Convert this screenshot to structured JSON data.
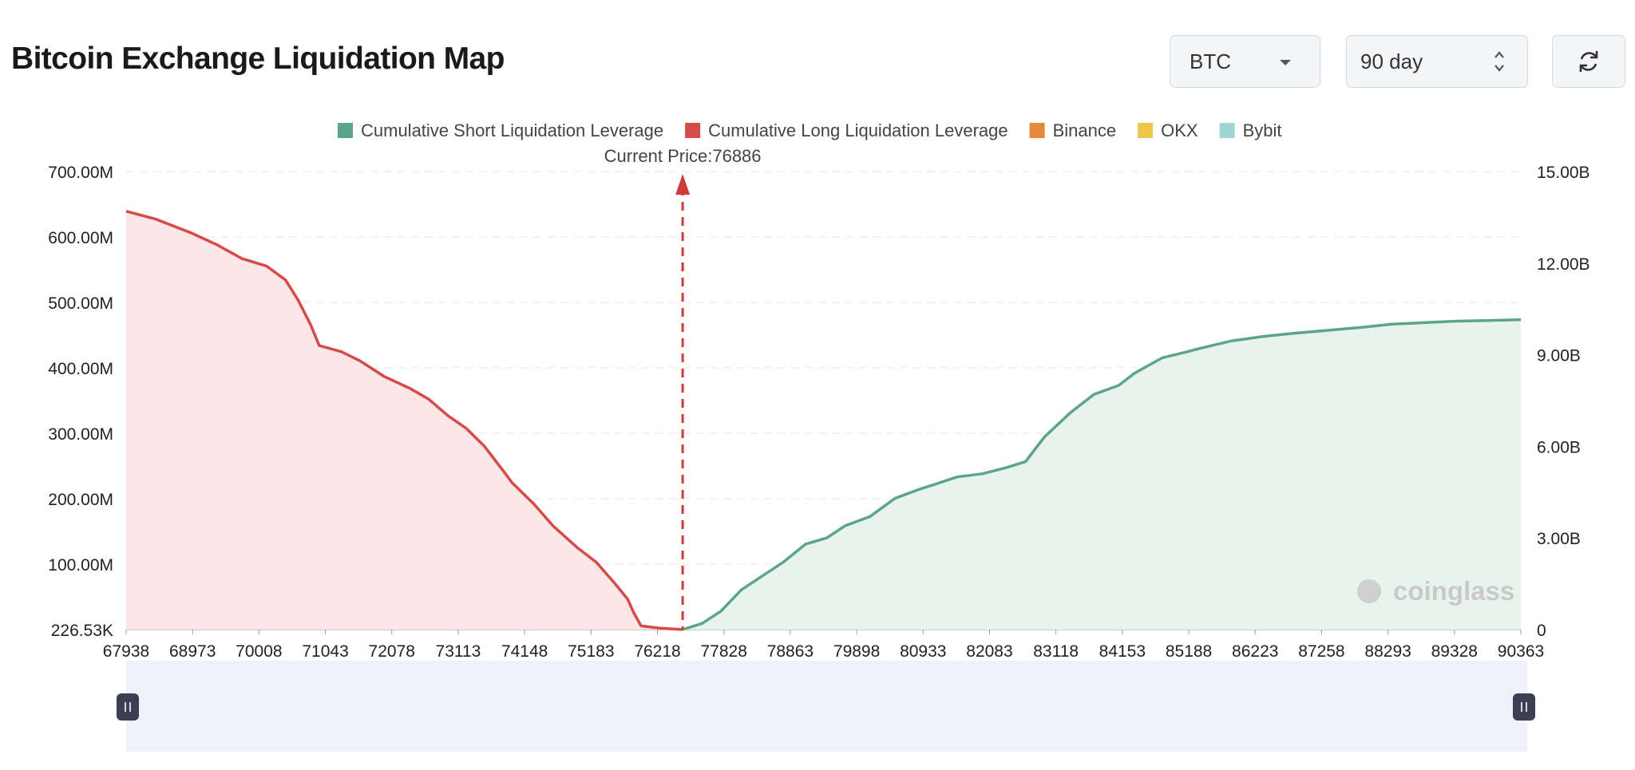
{
  "header": {
    "title": "Bitcoin Exchange Liquidation Map",
    "symbol_select": {
      "value": "BTC"
    },
    "range_select": {
      "value": "90 day"
    },
    "refresh_icon": "refresh-icon"
  },
  "colors": {
    "short": "#5aa58b",
    "long": "#d64a4a",
    "binance": "#e58a3a",
    "okx": "#eec64b",
    "bybit": "#a1d4d9",
    "shortFill": "#e9f3ee",
    "longFill": "#fbe7e8",
    "slider": "#eef1fc"
  },
  "watermark": "coinglass",
  "chart_data": {
    "type": "bar",
    "legend": [
      {
        "name": "Cumulative Short Liquidation Leverage",
        "color": "#5aa58b"
      },
      {
        "name": "Cumulative Long Liquidation Leverage",
        "color": "#d64a4a"
      },
      {
        "name": "Binance",
        "color": "#e58a3a"
      },
      {
        "name": "OKX",
        "color": "#eec64b"
      },
      {
        "name": "Bybit",
        "color": "#a1d4d9"
      }
    ],
    "legend_position": "top-center",
    "current_price_label": "Current Price:76886",
    "current_price": 76886,
    "x_min": 67938,
    "x_max": 90363,
    "x_ticks": [
      "67938",
      "68973",
      "70008",
      "71043",
      "72078",
      "73113",
      "74148",
      "75183",
      "76218",
      "77828",
      "78863",
      "79898",
      "80933",
      "82083",
      "83118",
      "84153",
      "85188",
      "86223",
      "87258",
      "88293",
      "89328",
      "90363"
    ],
    "y_left_ticks": [
      "226.53K",
      "100.00M",
      "200.00M",
      "300.00M",
      "400.00M",
      "500.00M",
      "600.00M",
      "700.00M"
    ],
    "y_left_range": [
      0,
      700000000
    ],
    "y_right_ticks": [
      "0",
      "3.00B",
      "6.00B",
      "9.00B",
      "12.00B",
      "15.00B"
    ],
    "y_right_range": [
      0,
      15000000000
    ],
    "grid": true,
    "cumulative_long": [
      [
        67938,
        13.7
      ],
      [
        68400,
        13.45
      ],
      [
        68973,
        13.0
      ],
      [
        69400,
        12.6
      ],
      [
        69800,
        12.15
      ],
      [
        70200,
        11.9
      ],
      [
        70500,
        11.45
      ],
      [
        70700,
        10.8
      ],
      [
        70900,
        10.0
      ],
      [
        71043,
        9.3
      ],
      [
        71400,
        9.1
      ],
      [
        71700,
        8.8
      ],
      [
        72078,
        8.3
      ],
      [
        72500,
        7.9
      ],
      [
        72800,
        7.55
      ],
      [
        73113,
        7.0
      ],
      [
        73400,
        6.6
      ],
      [
        73700,
        6.0
      ],
      [
        74000,
        5.2
      ],
      [
        74148,
        4.8
      ],
      [
        74500,
        4.1
      ],
      [
        74800,
        3.4
      ],
      [
        75183,
        2.7
      ],
      [
        75500,
        2.2
      ],
      [
        75800,
        1.5
      ],
      [
        76000,
        1.0
      ],
      [
        76100,
        0.55
      ],
      [
        76218,
        0.12
      ],
      [
        76500,
        0.05
      ],
      [
        76886,
        0.0
      ]
    ],
    "cumulative_short": [
      [
        76886,
        0.0
      ],
      [
        77200,
        0.2
      ],
      [
        77500,
        0.6
      ],
      [
        77828,
        1.3
      ],
      [
        78200,
        1.8
      ],
      [
        78500,
        2.2
      ],
      [
        78863,
        2.8
      ],
      [
        79200,
        3.0
      ],
      [
        79500,
        3.4
      ],
      [
        79898,
        3.7
      ],
      [
        80300,
        4.3
      ],
      [
        80700,
        4.6
      ],
      [
        80933,
        4.75
      ],
      [
        81300,
        5.0
      ],
      [
        81700,
        5.1
      ],
      [
        82083,
        5.3
      ],
      [
        82400,
        5.5
      ],
      [
        82700,
        6.3
      ],
      [
        83118,
        7.1
      ],
      [
        83500,
        7.7
      ],
      [
        83900,
        8.0
      ],
      [
        84153,
        8.4
      ],
      [
        84600,
        8.9
      ],
      [
        85000,
        9.1
      ],
      [
        85188,
        9.2
      ],
      [
        85700,
        9.45
      ],
      [
        86223,
        9.6
      ],
      [
        86700,
        9.7
      ],
      [
        87258,
        9.8
      ],
      [
        87800,
        9.9
      ],
      [
        88293,
        10.0
      ],
      [
        88800,
        10.05
      ],
      [
        89328,
        10.1
      ],
      [
        89800,
        10.12
      ],
      [
        90363,
        10.15
      ]
    ],
    "exchange_bars": []
  }
}
